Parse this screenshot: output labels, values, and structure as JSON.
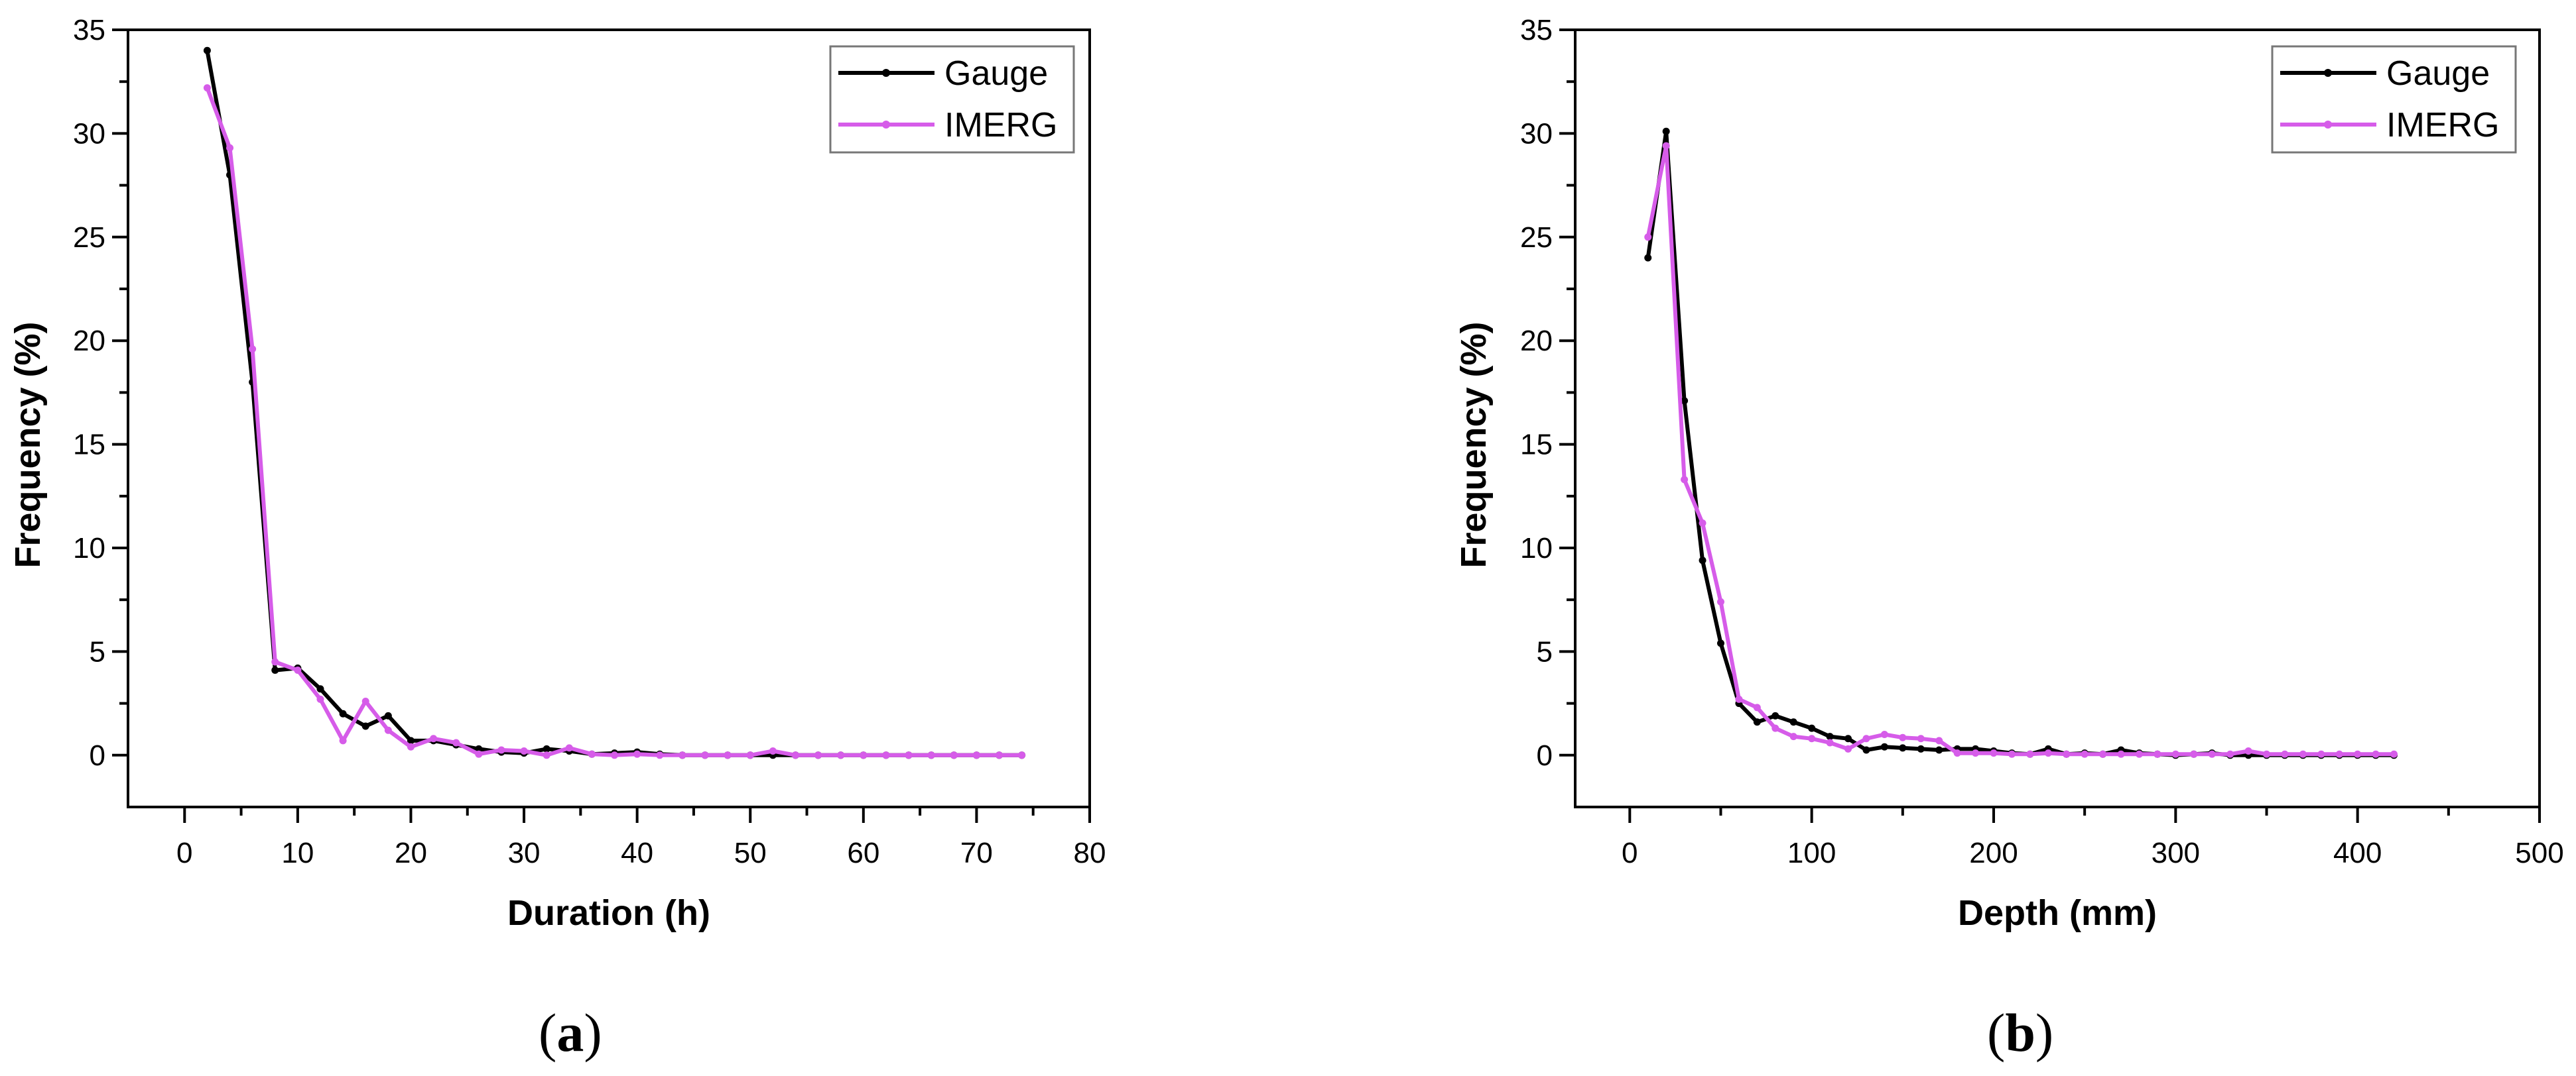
{
  "colors": {
    "gauge": "#000000",
    "imerg": "#d65ce9",
    "axis": "#000000",
    "background": "#ffffff"
  },
  "panels": [
    {
      "label": "a"
    },
    {
      "label": "b"
    }
  ],
  "chart_data": [
    {
      "type": "line",
      "xlabel": "Duration (h)",
      "ylabel": "Frequency (%)",
      "xlim": [
        -5,
        80
      ],
      "ylim": [
        -2.5,
        35
      ],
      "xticks": [
        0,
        10,
        20,
        30,
        40,
        50,
        60,
        70,
        80
      ],
      "yticks": [
        0,
        5,
        10,
        15,
        20,
        25,
        30,
        35
      ],
      "legend_position": "top-right",
      "grid": false,
      "series": [
        {
          "name": "Gauge",
          "x": [
            2,
            4,
            6,
            8,
            10,
            12,
            14,
            16,
            18,
            20,
            22,
            24,
            26,
            28,
            30,
            32,
            34,
            36,
            38,
            40,
            42,
            44,
            46,
            48,
            50,
            52,
            54,
            56,
            58,
            60,
            62,
            64,
            66,
            68,
            70,
            72,
            74
          ],
          "y": [
            34,
            28,
            18,
            4.1,
            4.2,
            3.2,
            2.0,
            1.4,
            1.9,
            0.7,
            0.7,
            0.5,
            0.3,
            0.15,
            0.1,
            0.3,
            0.2,
            0.05,
            0.1,
            0.15,
            0.05,
            0,
            0,
            0,
            0,
            0,
            0,
            0,
            0,
            0,
            0,
            0,
            0,
            0,
            0,
            0,
            0
          ]
        },
        {
          "name": "IMERG",
          "x": [
            2,
            4,
            6,
            8,
            10,
            12,
            14,
            16,
            18,
            20,
            22,
            24,
            26,
            28,
            30,
            32,
            34,
            36,
            38,
            40,
            42,
            44,
            46,
            48,
            50,
            52,
            54,
            56,
            58,
            60,
            62,
            64,
            66,
            68,
            70,
            72,
            74
          ],
          "y": [
            32.2,
            29.3,
            19.6,
            4.5,
            4.1,
            2.7,
            0.7,
            2.6,
            1.2,
            0.4,
            0.8,
            0.6,
            0.05,
            0.25,
            0.2,
            0,
            0.35,
            0.05,
            0,
            0.05,
            0,
            0,
            0,
            0,
            0,
            0.2,
            0,
            0,
            0,
            0,
            0,
            0,
            0,
            0,
            0,
            0,
            0
          ]
        }
      ]
    },
    {
      "type": "line",
      "xlabel": "Depth (mm)",
      "ylabel": "Frequency (%)",
      "xlim": [
        -30,
        500
      ],
      "ylim": [
        -2.5,
        35
      ],
      "xticks": [
        0,
        100,
        200,
        300,
        400,
        500
      ],
      "yticks": [
        0,
        5,
        10,
        15,
        20,
        25,
        30,
        35
      ],
      "legend_position": "top-right",
      "grid": false,
      "series": [
        {
          "name": "Gauge",
          "x": [
            10,
            20,
            30,
            40,
            50,
            60,
            70,
            80,
            90,
            100,
            110,
            120,
            130,
            140,
            150,
            160,
            170,
            180,
            190,
            200,
            210,
            220,
            230,
            240,
            250,
            260,
            270,
            280,
            290,
            300,
            310,
            320,
            330,
            340,
            350,
            360,
            370,
            380,
            390,
            400,
            410,
            420
          ],
          "y": [
            24,
            30.1,
            17.1,
            9.4,
            5.4,
            2.5,
            1.6,
            1.9,
            1.6,
            1.3,
            0.9,
            0.8,
            0.25,
            0.4,
            0.35,
            0.3,
            0.25,
            0.3,
            0.3,
            0.2,
            0.1,
            0.05,
            0.3,
            0.05,
            0.1,
            0.05,
            0.25,
            0.1,
            0.05,
            0,
            0.05,
            0.1,
            0,
            0,
            0,
            0,
            0,
            0,
            0,
            0,
            0,
            0
          ]
        },
        {
          "name": "IMERG",
          "x": [
            10,
            20,
            30,
            40,
            50,
            60,
            70,
            80,
            90,
            100,
            110,
            120,
            130,
            140,
            150,
            160,
            170,
            180,
            190,
            200,
            210,
            220,
            230,
            240,
            250,
            260,
            270,
            280,
            290,
            300,
            310,
            320,
            330,
            340,
            350,
            360,
            370,
            380,
            390,
            400,
            410,
            420
          ],
          "y": [
            25,
            29.4,
            13.3,
            11.2,
            7.4,
            2.7,
            2.3,
            1.3,
            0.9,
            0.8,
            0.6,
            0.3,
            0.8,
            1.0,
            0.85,
            0.8,
            0.7,
            0.1,
            0.1,
            0.1,
            0.05,
            0.05,
            0.1,
            0.05,
            0.05,
            0.05,
            0.05,
            0.05,
            0.05,
            0.05,
            0.05,
            0.05,
            0.05,
            0.2,
            0.05,
            0.05,
            0.05,
            0.05,
            0.05,
            0.05,
            0.05,
            0.05
          ]
        }
      ]
    }
  ]
}
